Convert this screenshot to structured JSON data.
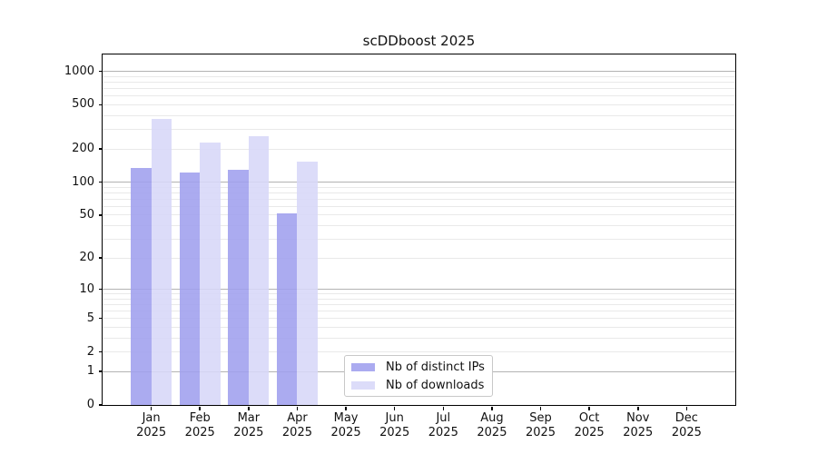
{
  "chart_data": {
    "type": "bar",
    "title": "scDDboost 2025",
    "categories": [
      "Jan",
      "Feb",
      "Mar",
      "Apr",
      "May",
      "Jun",
      "Jul",
      "Aug",
      "Sep",
      "Oct",
      "Nov",
      "Dec"
    ],
    "x_tick_second_line": "2025",
    "series": [
      {
        "name": "Nb of distinct IPs",
        "color": "#9f9fee",
        "values": [
          135,
          123,
          130,
          52,
          null,
          null,
          null,
          null,
          null,
          null,
          null,
          null
        ]
      },
      {
        "name": "Nb of downloads",
        "color": "#d7d7f8",
        "values": [
          375,
          230,
          260,
          155,
          null,
          null,
          null,
          null,
          null,
          null,
          null,
          null
        ]
      }
    ],
    "y_axis": {
      "scale": "log1p",
      "tick_values": [
        0,
        1,
        2,
        5,
        10,
        20,
        50,
        100,
        200,
        500,
        1000
      ],
      "tick_labels": [
        "0",
        "1",
        "2",
        "5",
        "10",
        "20",
        "50",
        "100",
        "200",
        "500",
        "1000"
      ]
    },
    "grid": {
      "major_values": [
        1,
        10,
        100,
        1000
      ],
      "minor_values": [
        2,
        3,
        4,
        5,
        6,
        7,
        8,
        9,
        20,
        30,
        40,
        50,
        60,
        70,
        80,
        90,
        200,
        300,
        400,
        500,
        600,
        700,
        800,
        900
      ],
      "major_color": "#b3b3b3",
      "minor_color": "#e9e9e9"
    },
    "legend": {
      "entries": [
        "Nb of distinct IPs",
        "Nb of downloads"
      ],
      "location": "lower-center"
    },
    "colors": {
      "distinct_ips": "#9f9fee",
      "downloads": "#d7d7f8",
      "spine": "#000000"
    }
  }
}
